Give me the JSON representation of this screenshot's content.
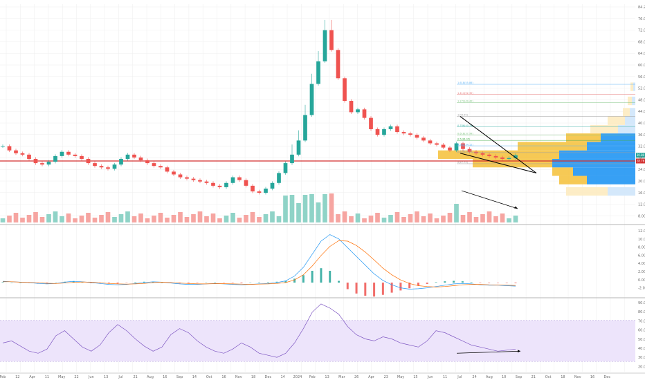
{
  "colors": {
    "up": "#26a69a",
    "down": "#ef5350",
    "hline": "#d32f2f",
    "vp_yellow": "#f5c342",
    "vp_blue": "#2196f3",
    "macd": "#2196f3",
    "signal": "#ff6d00",
    "rsi": "#7e57c2",
    "rsi_band": "#ede4fb",
    "grid": "#eeeeee",
    "sep": "#9e9e9e",
    "fib": "#90caf9"
  },
  "right_axis_main": [
    "84.20",
    "76.00",
    "72.00",
    "68.00",
    "64.00",
    "60.00",
    "56.00",
    "52.00",
    "48.00",
    "44.00",
    "40.00",
    "36.00",
    "32.00",
    "28.00",
    "24.00",
    "20.00",
    "16.00",
    "12.00",
    "8.00"
  ],
  "right_axis_macd": [
    "12.00",
    "10.00",
    "8.00",
    "6.00",
    "4.00",
    "2.00",
    "0.00",
    "-2.00"
  ],
  "right_axis_rsi": [
    "90.00",
    "80.00",
    "70.00",
    "60.00",
    "50.00",
    "40.00",
    "30.00",
    "20.00"
  ],
  "price_tags": [
    {
      "text": "30.80",
      "color": "#26a69a"
    },
    {
      "text": "28.76",
      "color": "#d32f2f"
    }
  ],
  "fib_labels": [
    "1.618(55.86)",
    "1.414(52.30)",
    "1.272(49.42)",
    "1(44.55)",
    "0.786(40.79)",
    "0.618(37.99)",
    "0.5(36.05)",
    "0.382(34.12)",
    "0.236(31.72)",
    "0(27.79)"
  ],
  "x_axis": [
    "Feb",
    "12",
    "Apr",
    "11",
    "May",
    "22",
    "Jun",
    "13",
    "Jul",
    "21",
    "Aug",
    "16",
    "Sep",
    "14",
    "Oct",
    "16",
    "Nov",
    "18",
    "Dec",
    "14",
    "2024",
    "Feb",
    "13",
    "Mar",
    "26",
    "Apr",
    "23",
    "May",
    "15",
    "Jun",
    "11",
    "Jul",
    "24",
    "Aug",
    "10",
    "Sep",
    "21",
    "Oct",
    "18",
    "Nov",
    "16",
    "Dec"
  ],
  "chart_data": [
    {
      "type": "candlestick",
      "title": "",
      "horizontal_line": 28.76,
      "last_price": 30.8,
      "ylim": [
        8,
        84.2
      ],
      "series": [
        {
          "name": "close",
          "values": [
            34,
            32.5,
            31.5,
            31,
            29.5,
            28,
            27.5,
            28.5,
            30.5,
            32,
            31,
            30.5,
            29.5,
            28,
            27,
            26.5,
            26,
            27.5,
            29.5,
            31,
            30,
            29,
            28,
            27,
            26.5,
            25,
            24,
            23,
            22.5,
            22,
            21.5,
            21,
            20,
            19.5,
            21,
            23,
            22,
            20,
            18,
            17.5,
            19,
            21,
            24.5,
            28,
            31,
            36,
            45,
            56,
            64,
            75,
            68,
            58,
            50,
            46,
            47,
            44,
            40,
            38,
            40,
            41,
            39,
            38.5,
            38,
            37,
            36,
            35,
            34.5,
            33.5,
            32.5,
            35,
            33,
            32,
            31.5,
            31,
            30.5,
            30,
            29.5,
            29.8,
            30.8
          ]
        }
      ],
      "volume_profile": {
        "levels": [
          20,
          24,
          28,
          32,
          36,
          40,
          44,
          48,
          52,
          56,
          60,
          64,
          68,
          72,
          76
        ],
        "note": "horizontal volume profile on right edge"
      }
    },
    {
      "type": "line",
      "title": "",
      "series": [
        {
          "name": "MACD",
          "values": [
            0.3,
            0.2,
            0.1,
            0,
            -0.2,
            -0.3,
            -0.2,
            0.1,
            0.3,
            0.2,
            0,
            -0.2,
            -0.4,
            -0.5,
            -0.4,
            -0.2,
            0,
            0.2,
            0.1,
            -0.1,
            -0.3,
            -0.4,
            -0.4,
            -0.3,
            -0.2,
            -0.3,
            -0.4,
            -0.5,
            -0.4,
            -0.3,
            -0.2,
            0,
            0.4,
            1.5,
            3.5,
            6.5,
            9.5,
            11,
            10,
            8,
            6,
            4,
            2,
            0.5,
            -0.5,
            -1.2,
            -1.5,
            -1.4,
            -1.2,
            -0.9,
            -0.6,
            -0.3,
            -0.2,
            -0.3,
            -0.5,
            -0.6,
            -0.6,
            -0.7,
            -0.8
          ]
        },
        {
          "name": "Signal",
          "values": [
            0.2,
            0.2,
            0.1,
            0.05,
            -0.05,
            -0.15,
            -0.2,
            -0.1,
            0.05,
            0.15,
            0.1,
            -0.05,
            -0.2,
            -0.3,
            -0.35,
            -0.3,
            -0.2,
            0,
            0.1,
            0,
            -0.1,
            -0.2,
            -0.3,
            -0.3,
            -0.25,
            -0.25,
            -0.3,
            -0.35,
            -0.4,
            -0.35,
            -0.3,
            -0.2,
            0,
            0.6,
            1.8,
            3.8,
            6.2,
            8.3,
            9.6,
            9.5,
            8.5,
            7,
            5.2,
            3.3,
            1.8,
            0.6,
            -0.2,
            -0.7,
            -0.9,
            -1,
            -0.9,
            -0.7,
            -0.5,
            -0.4,
            -0.4,
            -0.5,
            -0.55,
            -0.6,
            -0.65
          ]
        }
      ]
    },
    {
      "type": "line",
      "title": "",
      "ylim": [
        20,
        90
      ],
      "band": [
        30,
        70
      ],
      "series": [
        {
          "name": "RSI",
          "values": [
            48,
            50,
            45,
            40,
            38,
            42,
            55,
            60,
            52,
            44,
            40,
            46,
            58,
            66,
            60,
            52,
            45,
            40,
            44,
            56,
            62,
            58,
            50,
            44,
            40,
            38,
            42,
            48,
            44,
            38,
            36,
            34,
            38,
            48,
            62,
            78,
            86,
            82,
            76,
            64,
            56,
            52,
            50,
            54,
            52,
            48,
            46,
            44,
            50,
            60,
            58,
            54,
            50,
            46,
            44,
            42,
            40,
            41,
            42
          ]
        }
      ]
    }
  ]
}
